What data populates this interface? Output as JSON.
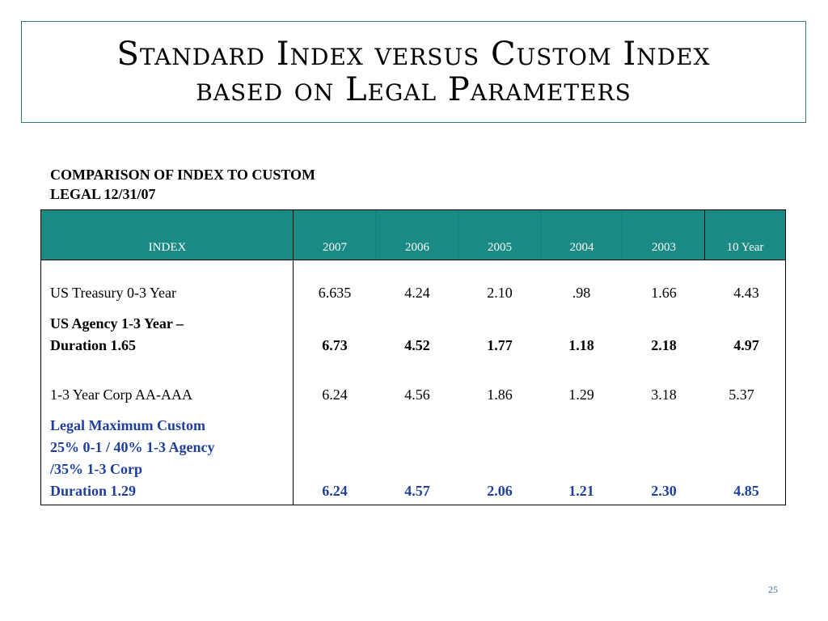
{
  "title_line1": "Standard Index versus Custom Index",
  "title_line2": "based on Legal Parameters",
  "subheading_line1": "COMPARISON OF INDEX TO CUSTOM",
  "subheading_line2": "LEGAL 12/31/07",
  "table": {
    "headers": [
      "INDEX",
      "2007",
      "2006",
      "2005",
      "2004",
      "2003",
      "10 Year"
    ],
    "rows": [
      {
        "label": [
          "US Treasury 0-3 Year"
        ],
        "values": [
          "6.635",
          "4.24",
          "2.10",
          ".98",
          "1.66",
          "4.43"
        ],
        "style": "normal"
      },
      {
        "label": [
          "US Agency 1-3 Year –",
          "Duration 1.65"
        ],
        "values": [
          "6.73",
          "4.52",
          "1.77",
          "1.18",
          "2.18",
          "4.97"
        ],
        "style": "bold"
      },
      {
        "label": [
          "1-3 Year Corp AA-AAA"
        ],
        "values": [
          "6.24",
          "4.56",
          "1.86",
          "1.29",
          "3.18",
          "5.37"
        ],
        "style": "normal"
      },
      {
        "label": [
          "Legal Maximum Custom",
          "25% 0-1 / 40% 1-3 Agency",
          "/35% 1-3 Corp",
          "Duration 1.29"
        ],
        "values": [
          "6.24",
          "4.57",
          "2.06",
          "1.21",
          "2.30",
          "4.85"
        ],
        "style": "blue-bold"
      }
    ]
  },
  "page_number": "25",
  "colors": {
    "header_bg": "#1a8a85",
    "title_border": "#2e7d7a",
    "custom_row": "#1f3f9f"
  }
}
